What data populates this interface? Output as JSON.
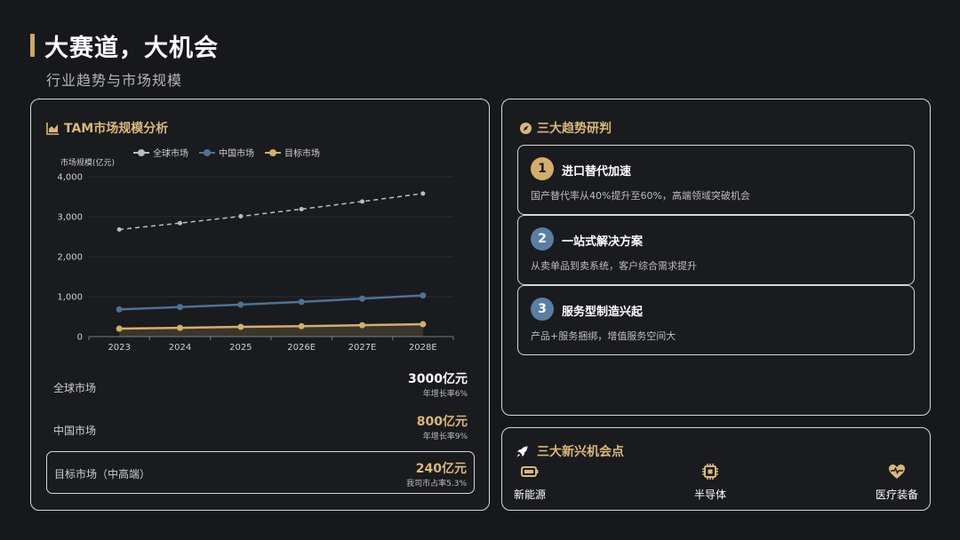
{
  "header": {
    "title": "大赛道，大机会",
    "subtitle": "行业趋势与市场规模"
  },
  "left_panel": {
    "title": "TAM市场规模分析",
    "icon": "area-chart-icon"
  },
  "chart_data": {
    "type": "line",
    "title": "",
    "ylabel": "市场规模(亿元)",
    "xlabel": "",
    "categories": [
      "2023",
      "2024",
      "2025",
      "2026E",
      "2027E",
      "2028E"
    ],
    "ylim": [
      0,
      4000
    ],
    "yticks": [
      "0",
      "1,000",
      "2,000",
      "3,000",
      "4,000"
    ],
    "legend": "top-center",
    "grid": true,
    "series": [
      {
        "name": "全球市场",
        "values": [
          2680,
          2840,
          3010,
          3190,
          3380,
          3580
        ],
        "color": "#b9bcc5",
        "dashed": true
      },
      {
        "name": "中国市场",
        "values": [
          680,
          740,
          800,
          870,
          950,
          1030
        ],
        "color": "#4f7193",
        "dashed": false
      },
      {
        "name": "目标市场",
        "values": [
          200,
          220,
          245,
          260,
          285,
          310
        ],
        "color": "#d2ae6c",
        "dashed": false
      }
    ]
  },
  "stats": [
    {
      "name": "全球市场",
      "value": "3000亿元",
      "sub": "年增长率6%",
      "color": "#ffffff"
    },
    {
      "name": "中国市场",
      "value": "800亿元",
      "sub": "年增长率9%",
      "color": "#d9b77b"
    },
    {
      "name": "目标市场（中高端）",
      "value": "240亿元",
      "sub": "我司市占率5.3%",
      "color": "#d9b77b"
    }
  ],
  "trends_panel": {
    "title": "三大趋势研判",
    "icon": "compass-icon",
    "items": [
      {
        "num": "1",
        "title": "进口替代加速",
        "desc": "国产替代率从40%提升至60%，高端领域突破机会",
        "badge_bg": "#d2ae6c",
        "badge_fg": "#1a1b1e"
      },
      {
        "num": "2",
        "title": "一站式解决方案",
        "desc": "从卖单品到卖系统，客户综合需求提升",
        "badge_bg": "#5b7ea3",
        "badge_fg": "#ffffff"
      },
      {
        "num": "3",
        "title": "服务型制造兴起",
        "desc": "产品+服务捆绑，增值服务空间大",
        "badge_bg": "#5b7ea3",
        "badge_fg": "#ffffff"
      }
    ]
  },
  "opps_panel": {
    "title": "三大新兴机会点",
    "icon": "rocket-icon",
    "items": [
      {
        "label": "新能源",
        "icon": "battery-icon"
      },
      {
        "label": "半导体",
        "icon": "chip-icon"
      },
      {
        "label": "医疗装备",
        "icon": "heart-pulse-icon"
      }
    ]
  },
  "colors": {
    "accent": "#d2ae6c",
    "blue": "#4f7193",
    "gray": "#b9bcc5"
  }
}
